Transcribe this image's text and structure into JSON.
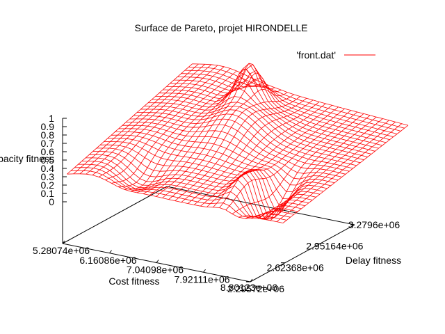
{
  "chart_data": {
    "type": "surface",
    "title": "Surface de Pareto, projet HIRONDELLE",
    "legend": {
      "label": "'front.dat'",
      "color": "#ff0000",
      "placement": "top-right"
    },
    "xlabel": "Cost fitness",
    "ylabel": "Delay fitness",
    "zlabel": "Capacity fitness",
    "x_ticks": [
      "5.28074e+06",
      "6.16086e+06",
      "7.04098e+06",
      "7.92111e+06",
      "8.80123e+06"
    ],
    "y_ticks": [
      "2.29572e+06",
      "2.62368e+06",
      "2.95164e+06",
      "3.2796e+06"
    ],
    "z_ticks": [
      "0",
      "0.1",
      "0.2",
      "0.3",
      "0.4",
      "0.5",
      "0.6",
      "0.7",
      "0.8",
      "0.9",
      "1"
    ],
    "xlim": [
      5280740,
      8801230
    ],
    "ylim": [
      2295720,
      3279600
    ],
    "zlim": [
      0,
      1
    ],
    "top_color": "#ff0000",
    "bottom_color": "#00c000",
    "axis_color": "#000000",
    "grid": false
  }
}
